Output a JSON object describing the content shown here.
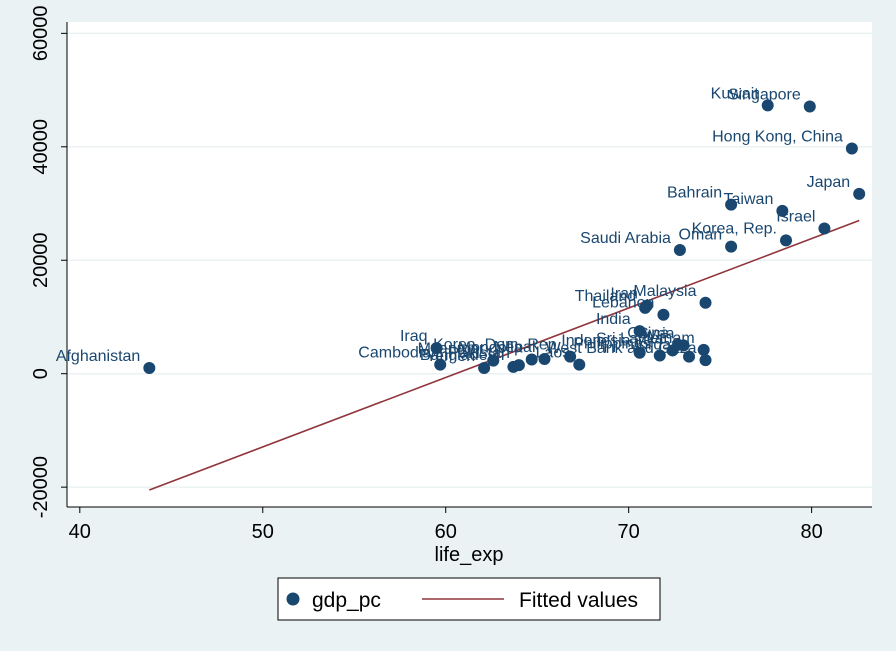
{
  "chart_data": {
    "type": "scatter",
    "xlabel": "life_exp",
    "ylabel": "",
    "xlim": [
      39.3,
      83.3
    ],
    "ylim": [
      -23500,
      62000
    ],
    "xticks": [
      40,
      50,
      60,
      70,
      80
    ],
    "yticks": [
      -20000,
      0,
      20000,
      40000,
      60000
    ],
    "xtick_labels": [
      "40",
      "50",
      "60",
      "70",
      "80"
    ],
    "ytick_labels": [
      "-20000",
      "0",
      "20000",
      "40000",
      "60000"
    ],
    "grid": "horizontal",
    "legend_position": "bottom",
    "series": [
      {
        "name": "gdp_pc",
        "kind": "scatter",
        "color": "#1a476f",
        "points": [
          {
            "label": "Afghanistan",
            "x": 43.8,
            "y": 1000
          },
          {
            "label": "Iraq",
            "x": 59.5,
            "y": 4500
          },
          {
            "label": "Cambodia",
            "x": 59.7,
            "y": 1600
          },
          {
            "label": "Yemen",
            "x": 62.1,
            "y": 1000
          },
          {
            "label": "Myanmar",
            "x": 62.6,
            "y": 2300
          },
          {
            "label": "Bangladesh",
            "x": 63.7,
            "y": 1200
          },
          {
            "label": "Pakistan",
            "x": 64.0,
            "y": 1500
          },
          {
            "label": "Mongolia",
            "x": 64.7,
            "y": 2500
          },
          {
            "label": "Nepal",
            "x": 65.4,
            "y": 2600
          },
          {
            "label": "Korea, Dem. Rep.",
            "x": 66.8,
            "y": 3000
          },
          {
            "label": "Laos",
            "x": 67.3,
            "y": 1600
          },
          {
            "label": "Indonesia",
            "x": 70.6,
            "y": 3700
          },
          {
            "label": "India",
            "x": 70.6,
            "y": 7500
          },
          {
            "label": "Philippines",
            "x": 71.7,
            "y": 3200
          },
          {
            "label": "Sri Lanka",
            "x": 72.4,
            "y": 4100
          },
          {
            "label": "China",
            "x": 72.7,
            "y": 5100
          },
          {
            "label": "Syria",
            "x": 73.0,
            "y": 5000
          },
          {
            "label": "Jordan",
            "x": 73.3,
            "y": 3000
          },
          {
            "label": "Vietnam",
            "x": 74.1,
            "y": 4200
          },
          {
            "label": "West Bank and Gaza",
            "x": 74.2,
            "y": 2400
          },
          {
            "label": "Thailand",
            "x": 70.9,
            "y": 11600
          },
          {
            "label": "Iran",
            "x": 71.0,
            "y": 12000
          },
          {
            "label": "Lebanon",
            "x": 71.9,
            "y": 10400
          },
          {
            "label": "Malaysia",
            "x": 74.2,
            "y": 12500
          },
          {
            "label": "Saudi Arabia",
            "x": 72.8,
            "y": 21800
          },
          {
            "label": "Oman",
            "x": 75.6,
            "y": 22400
          },
          {
            "label": "Korea, Rep.",
            "x": 78.6,
            "y": 23500
          },
          {
            "label": "Bahrain",
            "x": 75.6,
            "y": 29800
          },
          {
            "label": "Taiwan",
            "x": 78.4,
            "y": 28700
          },
          {
            "label": "Israel",
            "x": 80.7,
            "y": 25600
          },
          {
            "label": "Japan",
            "x": 82.6,
            "y": 31700
          },
          {
            "label": "Hong Kong, China",
            "x": 82.2,
            "y": 39700
          },
          {
            "label": "Kuwait",
            "x": 77.6,
            "y": 47300
          },
          {
            "label": "Singapore",
            "x": 79.9,
            "y": 47100
          }
        ]
      },
      {
        "name": "Fitted values",
        "kind": "line",
        "color": "#90353b",
        "points": [
          {
            "x": 43.8,
            "y": -20500
          },
          {
            "x": 82.6,
            "y": 27000
          }
        ]
      }
    ]
  }
}
